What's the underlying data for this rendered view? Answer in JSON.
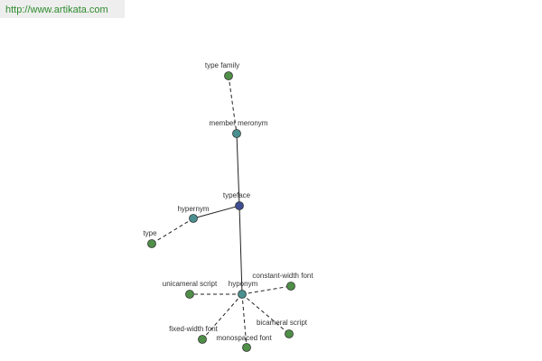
{
  "header": {
    "url": "http://www.artikata.com"
  },
  "nodes": [
    {
      "label": "type family"
    },
    {
      "label": "member meronym"
    },
    {
      "label": "typeface"
    },
    {
      "label": "hypernym"
    },
    {
      "label": "type"
    },
    {
      "label": "hyponym"
    },
    {
      "label": "unicameral script"
    },
    {
      "label": "constant-width font"
    },
    {
      "label": "fixed-width font"
    },
    {
      "label": "monospaced font"
    },
    {
      "label": "bicameral script"
    }
  ]
}
